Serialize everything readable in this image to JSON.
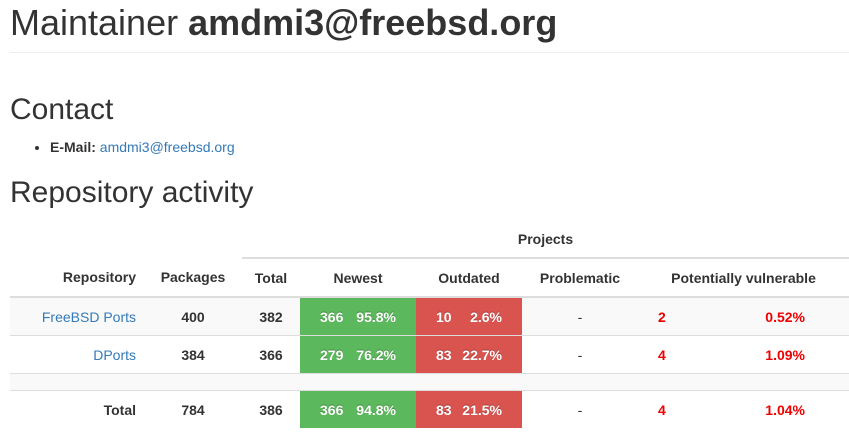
{
  "title": {
    "prefix": "Maintainer",
    "email": "amdmi3@freebsd.org"
  },
  "contact": {
    "heading": "Contact",
    "email_label": "E-Mail:",
    "email_value": "amdmi3@freebsd.org"
  },
  "activity": {
    "heading": "Repository activity",
    "group_header": "Projects",
    "columns": {
      "repository": "Repository",
      "packages": "Packages",
      "total": "Total",
      "newest": "Newest",
      "outdated": "Outdated",
      "problematic": "Problematic",
      "vulnerable": "Potentially vulnerable"
    },
    "rows": [
      {
        "repository": "FreeBSD Ports",
        "packages": "400",
        "total": "382",
        "newest_count": "366",
        "newest_pct": "95.8%",
        "outdated_count": "10",
        "outdated_pct": "2.6%",
        "problematic": "-",
        "vuln_count": "2",
        "vuln_pct": "0.52%"
      },
      {
        "repository": "DPorts",
        "packages": "384",
        "total": "366",
        "newest_count": "279",
        "newest_pct": "76.2%",
        "outdated_count": "83",
        "outdated_pct": "22.7%",
        "problematic": "-",
        "vuln_count": "4",
        "vuln_pct": "1.09%"
      }
    ],
    "total_row": {
      "label": "Total",
      "packages": "784",
      "total": "386",
      "newest_count": "366",
      "newest_pct": "94.8%",
      "outdated_count": "83",
      "outdated_pct": "21.5%",
      "problematic": "-",
      "vuln_count": "4",
      "vuln_pct": "1.04%"
    }
  },
  "colors": {
    "newest": "#5cb85c",
    "outdated": "#d9534f",
    "vulnerable": "#ee0000",
    "link": "#337ab7"
  }
}
